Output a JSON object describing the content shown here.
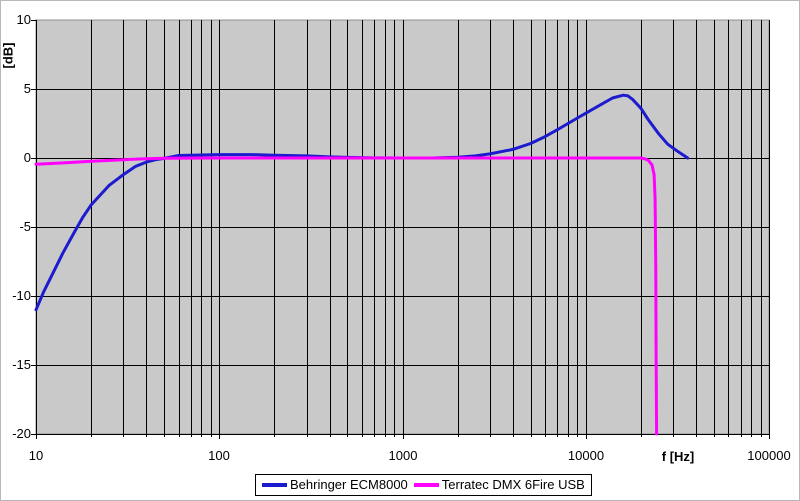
{
  "chart_data": {
    "type": "line",
    "title": "",
    "x_axis": {
      "label": "f [Hz]",
      "scale": "log",
      "min": 10,
      "max": 100000,
      "ticks": [
        "10",
        "100",
        "1000",
        "10000",
        "100000"
      ]
    },
    "y_axis": {
      "label": "[dB]",
      "min": -20,
      "max": 10,
      "tick_step": 5,
      "ticks": [
        "10",
        "5",
        "0",
        "-5",
        "-10",
        "-15",
        "-20"
      ]
    },
    "grid": "major and log minor gridlines on",
    "legend_position": "bottom-center",
    "plot_bg": "#c9c9c9",
    "grid_color": "#000000",
    "border_color": "#909090",
    "series": [
      {
        "name": "Behringer ECM8000",
        "color": "#1c1cce",
        "points": [
          [
            10,
            -11
          ],
          [
            11,
            -9.7
          ],
          [
            12,
            -8.7
          ],
          [
            14,
            -6.9
          ],
          [
            16,
            -5.5
          ],
          [
            18,
            -4.3
          ],
          [
            20,
            -3.4
          ],
          [
            25,
            -2.0
          ],
          [
            30,
            -1.2
          ],
          [
            35,
            -0.6
          ],
          [
            40,
            -0.3
          ],
          [
            45,
            -0.12
          ],
          [
            50,
            -0.03
          ],
          [
            55,
            0.08
          ],
          [
            60,
            0.18
          ],
          [
            80,
            0.22
          ],
          [
            100,
            0.25
          ],
          [
            150,
            0.25
          ],
          [
            200,
            0.2
          ],
          [
            300,
            0.15
          ],
          [
            400,
            0.08
          ],
          [
            500,
            0.04
          ],
          [
            700,
            0.01
          ],
          [
            1000,
            0
          ],
          [
            1500,
            0.01
          ],
          [
            2000,
            0.06
          ],
          [
            2500,
            0.15
          ],
          [
            3000,
            0.3
          ],
          [
            4000,
            0.62
          ],
          [
            5000,
            1.05
          ],
          [
            6000,
            1.55
          ],
          [
            7000,
            2.05
          ],
          [
            8000,
            2.5
          ],
          [
            9000,
            2.9
          ],
          [
            10000,
            3.25
          ],
          [
            12000,
            3.85
          ],
          [
            14000,
            4.35
          ],
          [
            16000,
            4.55
          ],
          [
            17000,
            4.5
          ],
          [
            18000,
            4.25
          ],
          [
            20000,
            3.6
          ],
          [
            22000,
            2.75
          ],
          [
            25000,
            1.75
          ],
          [
            28000,
            1.0
          ],
          [
            32000,
            0.45
          ],
          [
            36000,
            0.0
          ]
        ]
      },
      {
        "name": "Terratec DMX 6Fire USB",
        "color": "#ff00ff",
        "points": [
          [
            10,
            -0.45
          ],
          [
            15,
            -0.33
          ],
          [
            20,
            -0.24
          ],
          [
            30,
            -0.12
          ],
          [
            40,
            -0.05
          ],
          [
            50,
            -0.02
          ],
          [
            100,
            0
          ],
          [
            1000,
            0
          ],
          [
            10000,
            0
          ],
          [
            20000,
            0
          ],
          [
            21000,
            -0.06
          ],
          [
            22000,
            -0.18
          ],
          [
            23000,
            -0.5
          ],
          [
            23600,
            -1.2
          ],
          [
            23900,
            -3
          ],
          [
            24100,
            -8
          ],
          [
            24200,
            -14
          ],
          [
            24350,
            -20
          ]
        ]
      }
    ]
  }
}
